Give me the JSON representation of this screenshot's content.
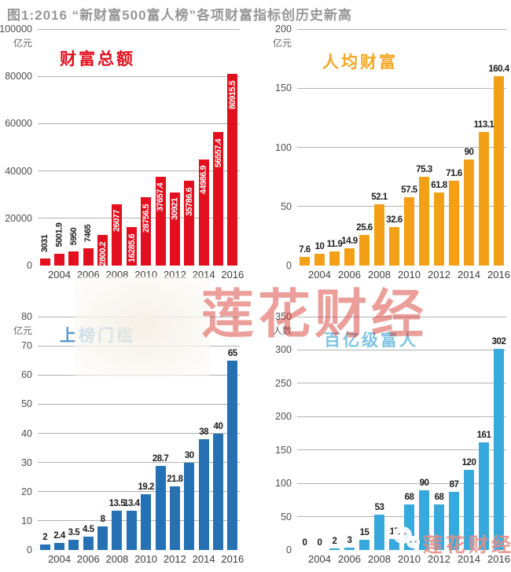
{
  "page_title": "图1:2016 “新财富500富人榜”各项财富指标创历史新高",
  "year_ticks": [
    "2004",
    "2006",
    "2008",
    "2010",
    "2012",
    "2014",
    "2016"
  ],
  "watermark": {
    "center_text": "莲花财经",
    "logo_text": "莲花财经",
    "logo_icon": "wechat-icon"
  },
  "chart_data": [
    {
      "type": "bar",
      "id": "total-wealth",
      "title": "财富总额",
      "unit": "亿元",
      "bar_color": "#e2101e",
      "title_color": "#e2101e",
      "categories": [
        "2003",
        "2004",
        "2005",
        "2006",
        "2007",
        "2008",
        "2009",
        "2010",
        "2011",
        "2012",
        "2013",
        "2014",
        "2015",
        "2016"
      ],
      "values": [
        3031,
        5001.9,
        5950,
        7465,
        12800.2,
        26077,
        16285.6,
        28756.5,
        37657.4,
        30921,
        35786.6,
        44986.9,
        56557.4,
        80915.5
      ],
      "labels": [
        "3031",
        "5001.9",
        "5950",
        "7465",
        "12800.2",
        "26077",
        "16285.6",
        "28756.5",
        "37657.4",
        "30921",
        "35786.6",
        "44986.9",
        "56557.4",
        "80915.5"
      ],
      "ymax": 100000,
      "ylim": [
        0,
        100000
      ],
      "yticks": [
        "100000",
        "80000",
        "60000",
        "40000",
        "20000",
        "0"
      ],
      "value_label_style": "vertical",
      "label_inside_from": 4,
      "grid": true,
      "legend": "none"
    },
    {
      "type": "bar",
      "id": "per-capita-wealth",
      "title": "人均财富",
      "unit": "亿元",
      "bar_color": "#f3a017",
      "title_color": "#f3a623",
      "categories": [
        "2003",
        "2004",
        "2005",
        "2006",
        "2007",
        "2008",
        "2009",
        "2010",
        "2011",
        "2012",
        "2013",
        "2014",
        "2015",
        "2016"
      ],
      "values": [
        7.6,
        10,
        11.9,
        14.9,
        25.6,
        52.1,
        32.6,
        57.5,
        75.3,
        61.8,
        71.6,
        90,
        113.1,
        160.4
      ],
      "labels": [
        "7.6",
        "10",
        "11.9",
        "14.9",
        "25.6",
        "52.1",
        "32.6",
        "57.5",
        "75.3",
        "61.8",
        "71.6",
        "90",
        "113.1",
        "160.4"
      ],
      "ymax": 200,
      "ylim": [
        0,
        200
      ],
      "yticks": [
        "200",
        "150",
        "100",
        "50",
        "0"
      ],
      "value_label_style": "horizontal",
      "label_inside_from": 99,
      "grid": true,
      "legend": "none"
    },
    {
      "type": "bar",
      "id": "list-threshold",
      "title": "上榜门槛",
      "unit": "亿元",
      "bar_color": "#2571b3",
      "title_color": "#5b97c9",
      "categories": [
        "2003",
        "2004",
        "2005",
        "2006",
        "2007",
        "2008",
        "2009",
        "2010",
        "2011",
        "2012",
        "2013",
        "2014",
        "2015",
        "2016"
      ],
      "values": [
        2,
        2.4,
        3.5,
        4.5,
        8,
        13.5,
        13.4,
        19.2,
        28.7,
        21.8,
        30,
        38,
        40,
        65
      ],
      "labels": [
        "2",
        "2.4",
        "3.5",
        "4.5",
        "8",
        "13.5",
        "13.4",
        "19.2",
        "28.7",
        "21.8",
        "30",
        "38",
        "40",
        "65"
      ],
      "ymax": 80,
      "ylim": [
        0,
        80
      ],
      "yticks": [
        "80",
        "70",
        "60",
        "50",
        "40",
        "30",
        "20",
        "10",
        "0"
      ],
      "value_label_style": "horizontal",
      "label_inside_from": 99,
      "grid": true,
      "legend": "none"
    },
    {
      "type": "bar",
      "id": "ten-billion-rich",
      "title": "百亿级富人",
      "unit": "人数",
      "bar_color": "#38a9dc",
      "title_color": "#7cc3e2",
      "categories": [
        "2003",
        "2004",
        "2005",
        "2006",
        "2007",
        "2008",
        "2009",
        "2010",
        "2011",
        "2012",
        "2013",
        "2014",
        "2015",
        "2016"
      ],
      "values": [
        0,
        0,
        2,
        3,
        15,
        53,
        17,
        68,
        90,
        68,
        87,
        120,
        161,
        302
      ],
      "labels": [
        "0",
        "0",
        "2",
        "3",
        "15",
        "53",
        "17",
        "68",
        "90",
        "68",
        "87",
        "120",
        "161",
        "302"
      ],
      "ymax": 350,
      "ylim": [
        0,
        350
      ],
      "yticks": [
        "350",
        "300",
        "250",
        "200",
        "150",
        "100",
        "50",
        "0"
      ],
      "value_label_style": "horizontal",
      "label_inside_from": 99,
      "grid": true,
      "legend": "none"
    }
  ]
}
